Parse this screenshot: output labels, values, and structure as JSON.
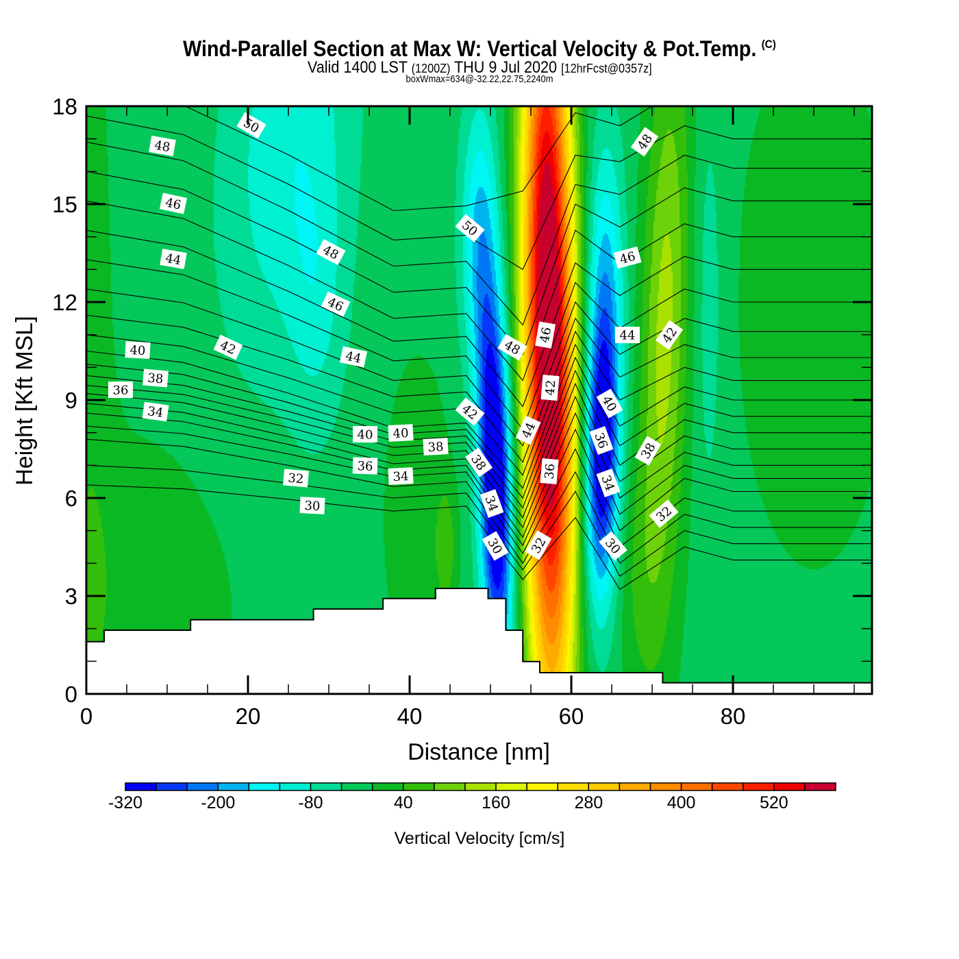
{
  "header": {
    "title": "Wind-Parallel Section at Max W: Vertical Velocity & Pot.Temp.",
    "copyright": "(C)",
    "valid_prefix": "Valid 1400 LST",
    "valid_utc": "(1200Z)",
    "valid_date": "THU 9 Jul 2020",
    "forecast": "[12hrFcst@0357z]",
    "box_wmax": "boxWmax=634@-32.22,22.75,2240m"
  },
  "chart_data": {
    "type": "heatmap",
    "title": "Wind-Parallel Section at Max W: Vertical Velocity & Pot.Temp.",
    "subtitle": "Valid 1400 LST (1200Z) THU 9 Jul 2020 [12hrFcst@0357z]",
    "annotation": "boxWmax=634@-32.22,22.75,2240m",
    "x_axis": {
      "label": "Distance [nm]",
      "range": [
        0,
        97.2
      ],
      "ticks": [
        "0",
        "20",
        "40",
        "60",
        "80"
      ],
      "tick_values": [
        0,
        20,
        40,
        60,
        80
      ],
      "minor_step": 5
    },
    "y_axis": {
      "label": "Height [Kft MSL]",
      "range": [
        0,
        18
      ],
      "ticks": [
        "0",
        "3",
        "6",
        "9",
        "12",
        "15",
        "18"
      ],
      "tick_values": [
        0,
        3,
        6,
        9,
        12,
        15,
        18
      ],
      "minor_step": 1
    },
    "grid": false,
    "colorbar": {
      "label": "Vertical Velocity [cm/s]",
      "placement": "bottom",
      "levels": [
        -320,
        -280,
        -240,
        -200,
        -160,
        -120,
        -80,
        -40,
        0,
        40,
        80,
        120,
        160,
        200,
        240,
        280,
        320,
        360,
        400,
        440,
        480,
        520,
        560,
        600
      ],
      "colors": [
        "#0000f5",
        "#0538f8",
        "#0078f5",
        "#00b4f0",
        "#00f5f5",
        "#00f0d2",
        "#00dc96",
        "#05c85a",
        "#0ab823",
        "#32be0a",
        "#6ed20a",
        "#aae100",
        "#dcf500",
        "#fff500",
        "#ffdc00",
        "#ffc800",
        "#ffaa00",
        "#ff8c00",
        "#ff6e00",
        "#ff4600",
        "#ff1e00",
        "#f00000",
        "#c8002d"
      ],
      "tick_labels": [
        "-320",
        "-200",
        "-80",
        "40",
        "160",
        "280",
        "400",
        "520"
      ],
      "tick_values": [
        -320,
        -200,
        -80,
        40,
        160,
        280,
        400,
        520
      ]
    },
    "vertical_velocity_field": {
      "units": "cm/s",
      "box_max": 634,
      "background": -15,
      "features": [
        {
          "name": "main-updraft",
          "x": 57.2,
          "h": 11,
          "sx": 2.2,
          "sh": 8.5,
          "amp": 700,
          "tilt": -0.04
        },
        {
          "name": "left-downdraft",
          "x": 50.6,
          "h": 6.5,
          "sx": 1.4,
          "sh": 4.0,
          "amp": -380,
          "tilt": -0.1
        },
        {
          "name": "left-downdraft-upper",
          "x": 48.6,
          "h": 14,
          "sx": 1.6,
          "sh": 3,
          "amp": -140,
          "tilt": 0
        },
        {
          "name": "right-downdraft",
          "x": 63.8,
          "h": 7.5,
          "sx": 1.5,
          "sh": 3.2,
          "amp": -340,
          "tilt": 0.05
        },
        {
          "name": "right-downdraft-upper",
          "x": 64.2,
          "h": 13.5,
          "sx": 1.6,
          "sh": 3,
          "amp": -110,
          "tilt": 0
        },
        {
          "name": "right-updraft-band",
          "x": 71.5,
          "h": 11,
          "sx": 2.0,
          "sh": 6.5,
          "amp": 150,
          "tilt": 0.1
        },
        {
          "name": "upper-left-sink",
          "x": 25,
          "h": 17,
          "sx": 5.5,
          "sh": 5,
          "amp": -95,
          "tilt": 0.3
        },
        {
          "name": "mid-left-sink",
          "x": 28.5,
          "h": 12,
          "sx": 2.5,
          "sh": 3,
          "amp": -60,
          "tilt": 0
        },
        {
          "name": "upper-right-sink",
          "x": 77,
          "h": 12,
          "sx": 1.3,
          "sh": 5,
          "amp": -50,
          "tilt": 0
        },
        {
          "name": "low-left-rise",
          "x": 6,
          "h": 3,
          "sx": 9,
          "sh": 3.5,
          "amp": 40,
          "tilt": 0
        },
        {
          "name": "mid-rise",
          "x": 41,
          "h": 5.5,
          "sx": 3,
          "sh": 3.5,
          "amp": 40,
          "tilt": 0
        },
        {
          "name": "mid-rise-core",
          "x": 44.5,
          "h": 4.5,
          "sx": 0.9,
          "sh": 1.3,
          "amp": 70,
          "tilt": 0
        },
        {
          "name": "right-rise",
          "x": 90,
          "h": 12,
          "sx": 7,
          "sh": 6,
          "amp": 38,
          "tilt": 0
        },
        {
          "name": "left-edge-rise",
          "x": 0.5,
          "h": 9,
          "sx": 2,
          "sh": 10,
          "amp": 35,
          "tilt": 0
        },
        {
          "name": "lower-right-rise",
          "x": 68,
          "h": 3.5,
          "sx": 2,
          "sh": 2.5,
          "amp": 40,
          "tilt": 0
        }
      ]
    },
    "theta_contours": {
      "quantity": "Potential Temperature",
      "anchors_x": [
        0,
        12,
        25,
        38,
        47,
        54,
        60.5,
        66,
        74,
        80,
        97.2
      ],
      "lines": [
        {
          "level": 30,
          "h": [
            6.4,
            6.28,
            5.96,
            5.6,
            5.75,
            3.5,
            5.4,
            3.2,
            4.5,
            4.1,
            4.1
          ]
        },
        {
          "level": 31,
          "h": [
            7.0,
            6.85,
            6.45,
            6.0,
            6.15,
            3.8,
            6.2,
            3.6,
            5.0,
            4.6,
            4.6
          ]
        },
        {
          "level": 32,
          "h": [
            7.8,
            7.58,
            7.0,
            6.35,
            6.5,
            4.0,
            6.8,
            4.0,
            5.5,
            5.1,
            5.1
          ]
        },
        {
          "level": 33,
          "h": [
            8.2,
            7.97,
            7.35,
            6.65,
            6.8,
            4.3,
            7.5,
            4.5,
            6.0,
            5.6,
            5.6
          ]
        },
        {
          "level": 34,
          "h": [
            8.6,
            8.34,
            7.64,
            6.85,
            7.0,
            4.55,
            8.1,
            5.0,
            6.6,
            6.2,
            6.2
          ]
        },
        {
          "level": 35,
          "h": [
            8.9,
            8.62,
            7.88,
            7.05,
            7.2,
            4.8,
            8.6,
            5.5,
            7.0,
            6.6,
            6.6
          ]
        },
        {
          "level": 36,
          "h": [
            9.2,
            8.92,
            8.16,
            7.3,
            7.45,
            5.1,
            9.1,
            6.0,
            7.4,
            7.0,
            7.0
          ]
        },
        {
          "level": 37,
          "h": [
            9.45,
            9.17,
            8.41,
            7.55,
            7.7,
            5.4,
            9.5,
            6.5,
            7.9,
            7.5,
            7.5
          ]
        },
        {
          "level": 38,
          "h": [
            9.75,
            9.45,
            8.65,
            7.75,
            7.9,
            5.7,
            9.9,
            7.0,
            8.4,
            8.0,
            8.0
          ]
        },
        {
          "level": 39,
          "h": [
            10.1,
            9.78,
            8.92,
            7.95,
            8.1,
            6.0,
            10.3,
            7.6,
            8.9,
            8.5,
            8.5
          ]
        },
        {
          "level": 40,
          "h": [
            10.5,
            10.15,
            9.21,
            8.15,
            8.3,
            6.3,
            10.7,
            8.2,
            9.4,
            9.0,
            9.0
          ]
        },
        {
          "level": 41,
          "h": [
            11.0,
            10.64,
            9.68,
            8.6,
            8.75,
            6.7,
            11.1,
            9.0,
            10.0,
            9.6,
            9.6
          ]
        },
        {
          "level": 42,
          "h": [
            11.6,
            11.23,
            10.23,
            9.1,
            9.25,
            7.1,
            11.5,
            9.7,
            10.7,
            10.3,
            10.3
          ]
        },
        {
          "level": 43,
          "h": [
            12.4,
            11.98,
            10.86,
            9.6,
            9.75,
            7.6,
            12.0,
            10.4,
            11.5,
            11.1,
            11.1
          ]
        },
        {
          "level": 44,
          "h": [
            13.3,
            12.84,
            11.6,
            10.2,
            10.35,
            8.1,
            12.6,
            11.2,
            12.4,
            12.0,
            12.0
          ]
        },
        {
          "level": 45,
          "h": [
            14.2,
            13.69,
            12.33,
            10.8,
            10.95,
            8.8,
            13.2,
            12.2,
            13.4,
            13.0,
            13.0
          ]
        },
        {
          "level": 46,
          "h": [
            15.1,
            14.56,
            13.12,
            11.5,
            11.65,
            9.6,
            14.2,
            13.2,
            14.4,
            14.0,
            14.0
          ]
        },
        {
          "level": 47,
          "h": [
            16.0,
            15.45,
            13.97,
            12.3,
            12.45,
            10.4,
            15.0,
            14.3,
            15.5,
            15.1,
            15.1
          ]
        },
        {
          "level": 48,
          "h": [
            16.9,
            16.33,
            14.81,
            13.1,
            13.25,
            11.3,
            15.6,
            15.3,
            16.5,
            16.1,
            16.1
          ]
        },
        {
          "level": 49,
          "h": [
            17.7,
            17.13,
            15.61,
            13.9,
            14.05,
            13.0,
            16.5,
            16.3,
            17.4,
            17.0,
            17.0
          ]
        },
        {
          "level": 50,
          "h": [
            18.6,
            18.03,
            16.51,
            14.8,
            14.95,
            15.4,
            17.8,
            17.4,
            18.6,
            18.2,
            18.2
          ]
        }
      ],
      "labels": [
        "50",
        "48",
        "46",
        "44",
        "40",
        "38",
        "36",
        "34",
        "42",
        "48",
        "46",
        "44",
        "40",
        "40",
        "38",
        "36",
        "34",
        "32",
        "30",
        "50",
        "42",
        "38",
        "34",
        "30",
        "48",
        "46",
        "44",
        "42",
        "36",
        "32",
        "48",
        "46",
        "44",
        "42",
        "40",
        "36",
        "34",
        "30",
        "38",
        "32"
      ]
    },
    "terrain": {
      "units": "distance nm, height kft",
      "segments": [
        {
          "x0": 0,
          "x1": 2.2,
          "h": 1.6
        },
        {
          "x0": 2.2,
          "x1": 12.9,
          "h": 1.95
        },
        {
          "x0": 12.9,
          "x1": 28.1,
          "h": 2.27
        },
        {
          "x0": 28.1,
          "x1": 36.7,
          "h": 2.6
        },
        {
          "x0": 36.7,
          "x1": 43.2,
          "h": 2.92
        },
        {
          "x0": 43.2,
          "x1": 49.7,
          "h": 3.23
        },
        {
          "x0": 49.7,
          "x1": 51.9,
          "h": 2.92
        },
        {
          "x0": 51.9,
          "x1": 54.0,
          "h": 1.95
        },
        {
          "x0": 54.0,
          "x1": 56.1,
          "h": 0.99
        },
        {
          "x0": 56.1,
          "x1": 71.3,
          "h": 0.65
        },
        {
          "x0": 71.3,
          "x1": 97.2,
          "h": 0.34
        }
      ]
    }
  }
}
